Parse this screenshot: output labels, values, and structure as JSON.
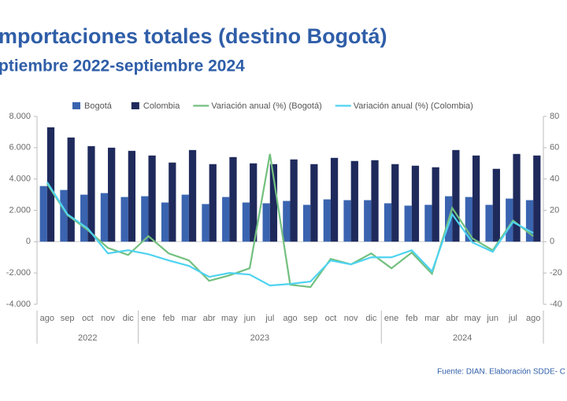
{
  "chart_data": {
    "type": "bar_line",
    "title": "mportaciones totales (destino Bogotá)",
    "subtitle": "ptiembre 2022-septiembre  2024",
    "source": "Fuente: DIAN. Elaboración SDDE- C",
    "categories": [
      "ago",
      "sep",
      "oct",
      "nov",
      "dic",
      "ene",
      "feb",
      "mar",
      "abr",
      "may",
      "jun",
      "jul",
      "ago",
      "sep",
      "oct",
      "nov",
      "dic",
      "ene",
      "feb",
      "mar",
      "abr",
      "may",
      "jun",
      "jul",
      "ago"
    ],
    "year_groups": [
      {
        "label": "2022",
        "count": 5
      },
      {
        "label": "2023",
        "count": 12
      },
      {
        "label": "2024",
        "count": 8
      }
    ],
    "ylim": [
      -4000,
      8000
    ],
    "yticks": [
      {
        "value": -4000,
        "label": "-4.000"
      },
      {
        "value": -2000,
        "label": "-2.000"
      },
      0,
      {
        "value": 2000,
        "label": "2.000"
      },
      {
        "value": 4000,
        "label": "4.000"
      },
      {
        "value": 6000,
        "label": "6.000"
      },
      {
        "value": 8000,
        "label": "8.000"
      }
    ],
    "y2lim": [
      -40,
      80
    ],
    "y2ticks": [
      -40,
      -20,
      0,
      20,
      40,
      60,
      80
    ],
    "series": [
      {
        "name": "Bogotá",
        "kind": "bar",
        "color": "#3a64b0",
        "values": [
          3550,
          3300,
          3000,
          3100,
          2850,
          2900,
          2500,
          3000,
          2400,
          2850,
          2500,
          2450,
          2600,
          2350,
          2700,
          2650,
          2650,
          2450,
          2300,
          2350,
          2900,
          2850,
          2350,
          2750,
          2650
        ]
      },
      {
        "name": "Colombia",
        "kind": "bar",
        "color": "#1f2a5c",
        "values": [
          7300,
          6650,
          6100,
          6000,
          5800,
          5500,
          5050,
          5850,
          4950,
          5400,
          5000,
          4950,
          5250,
          4950,
          5350,
          5150,
          5200,
          4950,
          4850,
          4750,
          5850,
          5500,
          4650,
          5600,
          5500
        ]
      },
      {
        "name": "Variación anual (%) (Bogotá)",
        "kind": "line",
        "axis": "y2",
        "color": "#72c07f",
        "values": [
          37,
          17,
          7.5,
          -4,
          -8.5,
          3.5,
          -7.5,
          -12,
          -25,
          -21.5,
          -17,
          56,
          -27.5,
          -29,
          -11,
          -14.5,
          -7.5,
          -17,
          -7,
          -20.5,
          21.5,
          2,
          -5.5,
          13.5,
          3.5
        ]
      },
      {
        "name": "Variación anual (%) (Colombia)",
        "kind": "line",
        "axis": "y2",
        "color": "#4fd3f0",
        "values": [
          38,
          17.5,
          8.5,
          -7.5,
          -5.5,
          -8,
          -12,
          -15.5,
          -22.5,
          -20,
          -21,
          -28,
          -27,
          -25.5,
          -12,
          -14.5,
          -10,
          -10,
          -5.5,
          -19,
          17.5,
          -0.5,
          -6.5,
          12.5,
          5.5
        ]
      }
    ]
  }
}
